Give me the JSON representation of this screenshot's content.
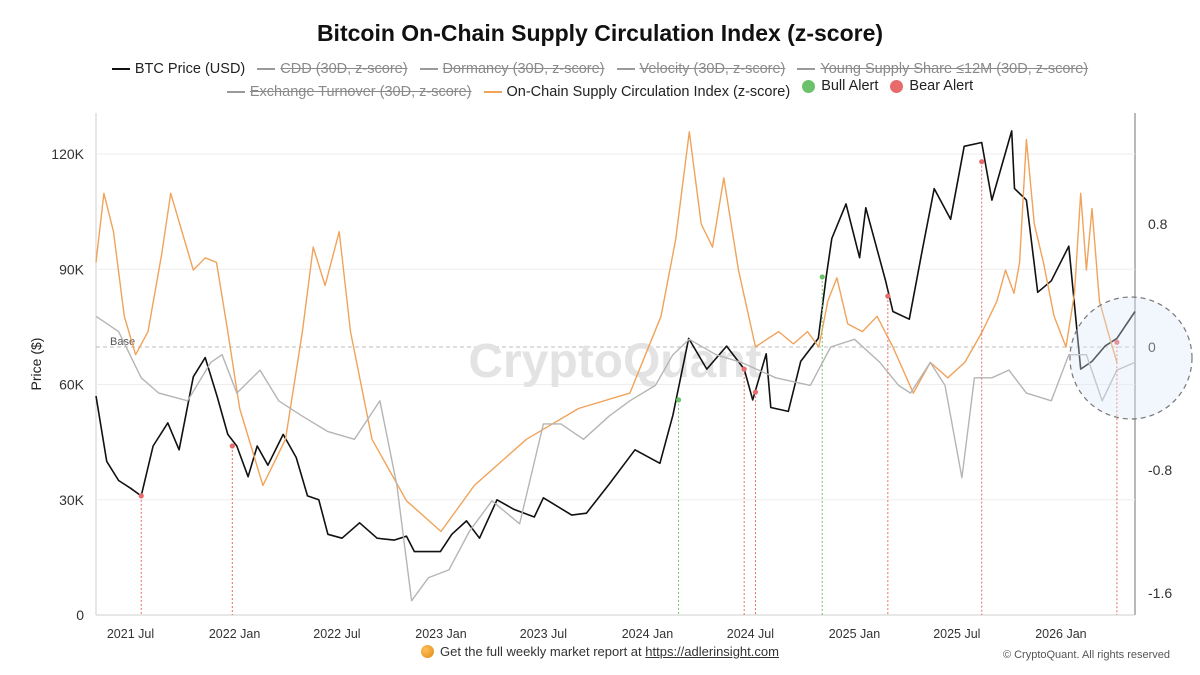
{
  "chart_data": {
    "type": "line",
    "title": "Bitcoin On-Chain Supply Circulation Index (z-score)",
    "ylabel": "Price ($)",
    "y_left_range": [
      0,
      130000
    ],
    "y_left_ticks": [
      0,
      30000,
      60000,
      90000,
      120000
    ],
    "y_left_tick_labels": [
      "0",
      "30K",
      "60K",
      "90K",
      "120K"
    ],
    "y_right_range": [
      -1.8,
      1.45
    ],
    "y_right_ticks": [
      0.8,
      0,
      -0.8,
      -1.6
    ],
    "y_right_tick_labels": [
      "0.8",
      "0",
      "-0.8",
      "-1.6"
    ],
    "x_range": [
      "2021-05-01",
      "2026-05-12"
    ],
    "x_ticks": [
      "2021-07-01",
      "2022-01-01",
      "2022-07-01",
      "2023-01-01",
      "2023-07-01",
      "2024-01-01",
      "2024-07-01",
      "2025-01-01",
      "2025-07-01",
      "2026-01-01"
    ],
    "x_tick_labels": [
      "2021 Jul",
      "2022 Jan",
      "2022 Jul",
      "2023 Jan",
      "2023 Jul",
      "2024 Jan",
      "2024 Jul",
      "2025 Jan",
      "2025 Jul",
      "2026 Jan"
    ],
    "baseline": {
      "label": "Base",
      "value": 0
    },
    "grid": true,
    "legend_position": "top",
    "series": [
      {
        "name": "BTC Price (USD)",
        "axis": "left",
        "color": "#111111",
        "points": [
          [
            "2021-05-01",
            57000
          ],
          [
            "2021-05-20",
            40000
          ],
          [
            "2021-06-10",
            35000
          ],
          [
            "2021-07-01",
            33000
          ],
          [
            "2021-07-20",
            31000
          ],
          [
            "2021-08-10",
            44000
          ],
          [
            "2021-09-05",
            50000
          ],
          [
            "2021-09-25",
            43000
          ],
          [
            "2021-10-20",
            62000
          ],
          [
            "2021-11-10",
            67000
          ],
          [
            "2021-12-01",
            57000
          ],
          [
            "2021-12-20",
            47000
          ],
          [
            "2022-01-05",
            44000
          ],
          [
            "2022-01-25",
            36000
          ],
          [
            "2022-02-10",
            44000
          ],
          [
            "2022-03-01",
            39000
          ],
          [
            "2022-03-28",
            47000
          ],
          [
            "2022-04-20",
            41000
          ],
          [
            "2022-05-10",
            31000
          ],
          [
            "2022-05-30",
            30000
          ],
          [
            "2022-06-15",
            21000
          ],
          [
            "2022-07-10",
            20000
          ],
          [
            "2022-08-10",
            24000
          ],
          [
            "2022-09-10",
            20000
          ],
          [
            "2022-10-10",
            19500
          ],
          [
            "2022-11-01",
            20500
          ],
          [
            "2022-11-15",
            16500
          ],
          [
            "2022-12-31",
            16500
          ],
          [
            "2023-01-20",
            21000
          ],
          [
            "2023-02-15",
            24500
          ],
          [
            "2023-03-10",
            20000
          ],
          [
            "2023-04-10",
            30000
          ],
          [
            "2023-05-10",
            27500
          ],
          [
            "2023-06-15",
            25500
          ],
          [
            "2023-07-01",
            30500
          ],
          [
            "2023-08-20",
            26000
          ],
          [
            "2023-09-15",
            26500
          ],
          [
            "2023-10-25",
            34000
          ],
          [
            "2023-12-10",
            43000
          ],
          [
            "2024-01-23",
            39500
          ],
          [
            "2024-02-15",
            52000
          ],
          [
            "2024-03-14",
            72000
          ],
          [
            "2024-04-15",
            64000
          ],
          [
            "2024-05-20",
            70000
          ],
          [
            "2024-06-20",
            64000
          ],
          [
            "2024-07-05",
            56000
          ],
          [
            "2024-07-29",
            68000
          ],
          [
            "2024-08-06",
            54000
          ],
          [
            "2024-09-06",
            53000
          ],
          [
            "2024-09-28",
            66000
          ],
          [
            "2024-10-29",
            72000
          ],
          [
            "2024-11-12",
            88000
          ],
          [
            "2024-11-22",
            98000
          ],
          [
            "2024-12-17",
            107000
          ],
          [
            "2025-01-10",
            93000
          ],
          [
            "2025-01-21",
            106000
          ],
          [
            "2025-02-25",
            87000
          ],
          [
            "2025-03-10",
            79000
          ],
          [
            "2025-04-08",
            77000
          ],
          [
            "2025-05-01",
            95000
          ],
          [
            "2025-05-22",
            111000
          ],
          [
            "2025-06-20",
            103000
          ],
          [
            "2025-07-14",
            122000
          ],
          [
            "2025-08-14",
            123000
          ],
          [
            "2025-09-01",
            108000
          ],
          [
            "2025-10-06",
            126000
          ],
          [
            "2025-10-11",
            111000
          ],
          [
            "2025-11-01",
            108000
          ],
          [
            "2025-11-21",
            84000
          ],
          [
            "2025-12-15",
            87000
          ],
          [
            "2026-01-15",
            96000
          ],
          [
            "2026-02-05",
            64000
          ],
          [
            "2026-02-25",
            66000
          ],
          [
            "2026-03-20",
            70000
          ],
          [
            "2026-04-10",
            72000
          ],
          [
            "2026-05-12",
            79000
          ]
        ]
      },
      {
        "name": "On-Chain Supply Circulation Index (z-score)",
        "axis": "right",
        "color": "#f0a35a",
        "points": [
          [
            "2021-05-01",
            0.55
          ],
          [
            "2021-05-15",
            1.0
          ],
          [
            "2021-06-01",
            0.75
          ],
          [
            "2021-06-20",
            0.2
          ],
          [
            "2021-07-10",
            -0.05
          ],
          [
            "2021-08-01",
            0.1
          ],
          [
            "2021-08-25",
            0.6
          ],
          [
            "2021-09-10",
            1.0
          ],
          [
            "2021-09-30",
            0.75
          ],
          [
            "2021-10-20",
            0.5
          ],
          [
            "2021-11-10",
            0.58
          ],
          [
            "2021-11-30",
            0.55
          ],
          [
            "2021-12-20",
            0.1
          ],
          [
            "2022-01-10",
            -0.4
          ],
          [
            "2022-02-20",
            -0.9
          ],
          [
            "2022-04-01",
            -0.6
          ],
          [
            "2022-05-01",
            0.1
          ],
          [
            "2022-05-20",
            0.65
          ],
          [
            "2022-06-10",
            0.4
          ],
          [
            "2022-07-05",
            0.75
          ],
          [
            "2022-07-25",
            0.1
          ],
          [
            "2022-09-01",
            -0.6
          ],
          [
            "2022-11-01",
            -1.0
          ],
          [
            "2023-01-01",
            -1.2
          ],
          [
            "2023-03-01",
            -0.9
          ],
          [
            "2023-06-01",
            -0.6
          ],
          [
            "2023-09-01",
            -0.4
          ],
          [
            "2023-12-01",
            -0.3
          ],
          [
            "2024-01-25",
            0.2
          ],
          [
            "2024-02-20",
            0.7
          ],
          [
            "2024-03-15",
            1.4
          ],
          [
            "2024-04-05",
            0.8
          ],
          [
            "2024-04-25",
            0.65
          ],
          [
            "2024-05-15",
            1.1
          ],
          [
            "2024-06-10",
            0.5
          ],
          [
            "2024-07-10",
            0.0
          ],
          [
            "2024-07-30",
            0.05
          ],
          [
            "2024-08-20",
            0.1
          ],
          [
            "2024-09-15",
            0.02
          ],
          [
            "2024-10-10",
            0.1
          ],
          [
            "2024-10-30",
            0.0
          ],
          [
            "2024-11-15",
            0.3
          ],
          [
            "2024-12-01",
            0.45
          ],
          [
            "2024-12-20",
            0.15
          ],
          [
            "2025-01-15",
            0.1
          ],
          [
            "2025-02-10",
            0.2
          ],
          [
            "2025-03-10",
            0.0
          ],
          [
            "2025-04-15",
            -0.3
          ],
          [
            "2025-05-15",
            -0.1
          ],
          [
            "2025-06-15",
            -0.2
          ],
          [
            "2025-07-15",
            -0.1
          ],
          [
            "2025-08-15",
            0.1
          ],
          [
            "2025-09-10",
            0.3
          ],
          [
            "2025-09-25",
            0.5
          ],
          [
            "2025-10-10",
            0.35
          ],
          [
            "2025-10-20",
            0.55
          ],
          [
            "2025-11-01",
            1.35
          ],
          [
            "2025-11-15",
            0.8
          ],
          [
            "2025-12-01",
            0.55
          ],
          [
            "2025-12-20",
            0.2
          ],
          [
            "2026-01-10",
            0.0
          ],
          [
            "2026-01-25",
            0.35
          ],
          [
            "2026-02-05",
            1.0
          ],
          [
            "2026-02-15",
            0.5
          ],
          [
            "2026-02-25",
            0.9
          ],
          [
            "2026-03-10",
            0.3
          ],
          [
            "2026-03-25",
            0.1
          ],
          [
            "2026-04-10",
            -0.1
          ]
        ]
      },
      {
        "name": "Exchange Turnover (30D, z-score)",
        "axis": "right",
        "color": "#b5b5b5",
        "hidden": true,
        "points": [
          [
            "2021-05-01",
            0.2
          ],
          [
            "2021-06-10",
            0.1
          ],
          [
            "2021-07-20",
            -0.2
          ],
          [
            "2021-08-20",
            -0.3
          ],
          [
            "2021-10-10",
            -0.35
          ],
          [
            "2021-11-20",
            -0.1
          ],
          [
            "2021-12-10",
            -0.05
          ],
          [
            "2022-01-05",
            -0.3
          ],
          [
            "2022-02-15",
            -0.15
          ],
          [
            "2022-03-20",
            -0.35
          ],
          [
            "2022-05-01",
            -0.45
          ],
          [
            "2022-06-15",
            -0.55
          ],
          [
            "2022-08-01",
            -0.6
          ],
          [
            "2022-09-15",
            -0.35
          ],
          [
            "2022-10-15",
            -0.9
          ],
          [
            "2022-11-10",
            -1.65
          ],
          [
            "2022-12-10",
            -1.5
          ],
          [
            "2023-01-15",
            -1.45
          ],
          [
            "2023-02-20",
            -1.2
          ],
          [
            "2023-04-01",
            -1.0
          ],
          [
            "2023-05-20",
            -1.15
          ],
          [
            "2023-07-01",
            -0.5
          ],
          [
            "2023-08-01",
            -0.5
          ],
          [
            "2023-09-10",
            -0.6
          ],
          [
            "2023-10-25",
            -0.45
          ],
          [
            "2023-12-01",
            -0.35
          ],
          [
            "2024-01-15",
            -0.25
          ],
          [
            "2024-02-15",
            -0.05
          ],
          [
            "2024-03-15",
            0.05
          ],
          [
            "2024-05-01",
            -0.05
          ],
          [
            "2024-06-15",
            -0.1
          ],
          [
            "2024-08-15",
            -0.2
          ],
          [
            "2024-10-15",
            -0.25
          ],
          [
            "2024-11-20",
            0.0
          ],
          [
            "2025-01-01",
            0.05
          ],
          [
            "2025-02-15",
            -0.1
          ],
          [
            "2025-03-20",
            -0.25
          ],
          [
            "2025-04-10",
            -0.3
          ],
          [
            "2025-05-15",
            -0.1
          ],
          [
            "2025-06-10",
            -0.25
          ],
          [
            "2025-07-10",
            -0.85
          ],
          [
            "2025-08-01",
            -0.2
          ],
          [
            "2025-09-01",
            -0.2
          ],
          [
            "2025-10-01",
            -0.15
          ],
          [
            "2025-11-01",
            -0.3
          ],
          [
            "2025-12-15",
            -0.35
          ],
          [
            "2026-01-15",
            -0.05
          ],
          [
            "2026-02-15",
            -0.05
          ],
          [
            "2026-03-15",
            -0.35
          ],
          [
            "2026-04-10",
            -0.15
          ],
          [
            "2026-05-12",
            -0.1
          ]
        ]
      },
      {
        "name": "CDD (30D, z-score)",
        "hidden": true
      },
      {
        "name": "Dormancy (30D, z-score)",
        "hidden": true
      },
      {
        "name": "Velocity (30D, z-score)",
        "hidden": true
      },
      {
        "name": "Young Supply Share ≤12M (30D, z-score)",
        "hidden": true
      }
    ],
    "alerts": [
      {
        "type": "bear",
        "date": "2021-07-20",
        "price": 31000
      },
      {
        "type": "bear",
        "date": "2021-12-28",
        "price": 44000
      },
      {
        "type": "bull",
        "date": "2024-02-25",
        "price": 56000
      },
      {
        "type": "bear",
        "date": "2024-06-20",
        "price": 64000
      },
      {
        "type": "bear",
        "date": "2024-07-10",
        "price": 58000
      },
      {
        "type": "bull",
        "date": "2024-11-05",
        "price": 88000
      },
      {
        "type": "bear",
        "date": "2025-03-01",
        "price": 83000
      },
      {
        "type": "bear",
        "date": "2025-08-14",
        "price": 118000
      },
      {
        "type": "bear",
        "date": "2026-04-10",
        "price": 71000
      }
    ]
  },
  "legend": {
    "row1": [
      {
        "label": "BTC Price (USD)",
        "color": "#111111",
        "state": "on",
        "kind": "line"
      },
      {
        "label": "CDD (30D, z-score)",
        "color": "#9a9a9a",
        "state": "off",
        "kind": "line"
      },
      {
        "label": "Dormancy (30D, z-score)",
        "color": "#9a9a9a",
        "state": "off",
        "kind": "line"
      },
      {
        "label": "Velocity (30D, z-score)",
        "color": "#9a9a9a",
        "state": "off",
        "kind": "line"
      },
      {
        "label": "Young Supply Share ≤12M (30D, z-score)",
        "color": "#9a9a9a",
        "state": "off",
        "kind": "line"
      }
    ],
    "row2": [
      {
        "label": "Exchange Turnover (30D, z-score)",
        "color": "#9a9a9a",
        "state": "off",
        "kind": "line"
      },
      {
        "label": "On-Chain Supply Circulation Index (z-score)",
        "color": "#f0a35a",
        "state": "on",
        "kind": "line"
      },
      {
        "label": "Bull Alert",
        "color": "#6cc26a",
        "state": "on",
        "kind": "dot"
      },
      {
        "label": "Bear Alert",
        "color": "#e86b6b",
        "state": "on",
        "kind": "dot"
      }
    ]
  },
  "watermark": "CryptoQuant",
  "footer": {
    "text": "Get the full weekly market report at",
    "link": "https://adlerinsight.com",
    "copyright": "© CryptoQuant. All rights reserved"
  }
}
